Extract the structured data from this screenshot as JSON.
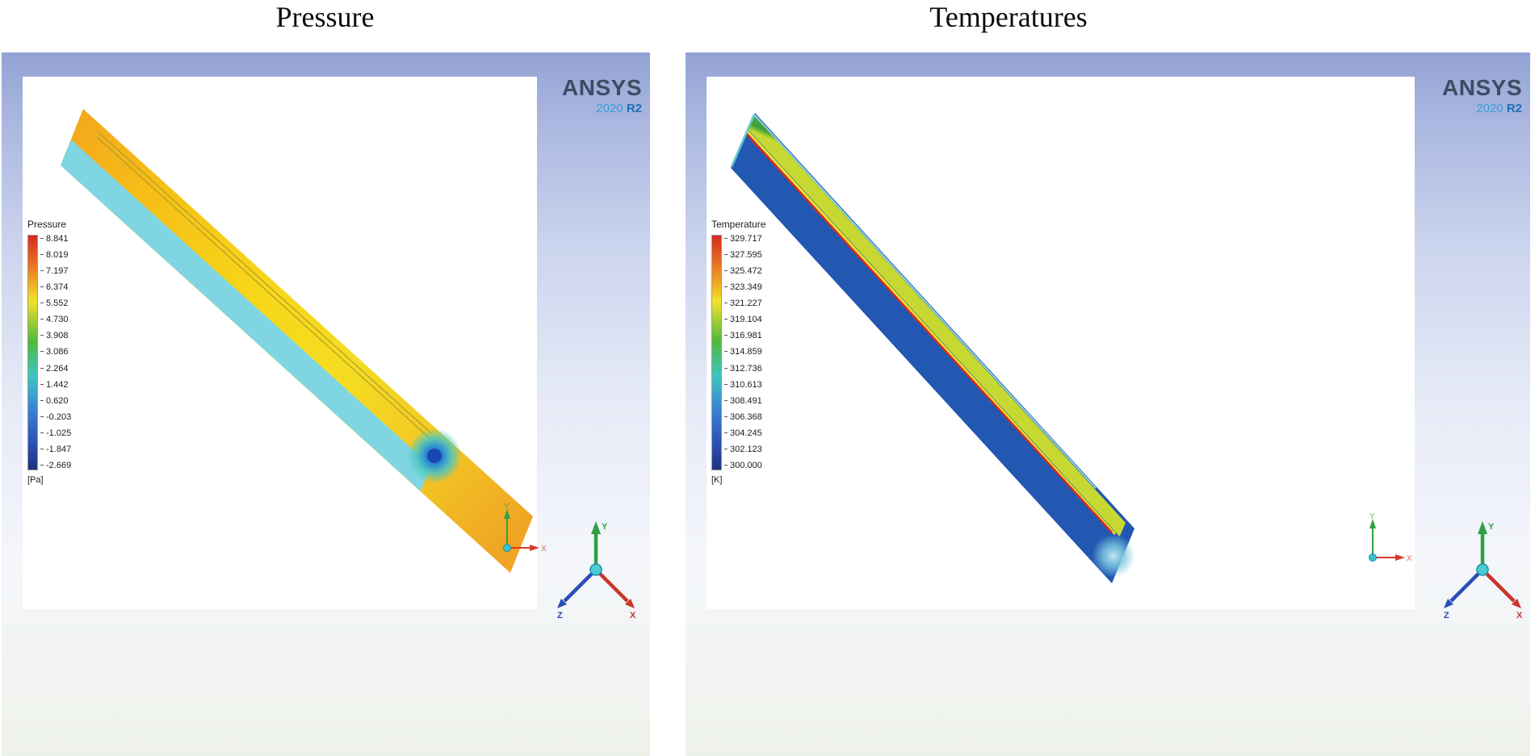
{
  "figure": {
    "panels": [
      {
        "title": "Pressure",
        "logo": {
          "brand": "ANSYS",
          "year": "2020",
          "release": "R2"
        },
        "legend": {
          "title": "Pressure",
          "unit": "[Pa]",
          "ticks": [
            "8.841",
            "8.019",
            "7.197",
            "6.374",
            "5.552",
            "4.730",
            "3.908",
            "3.086",
            "2.264",
            "1.442",
            "0.620",
            "-0.203",
            "-1.025",
            "-1.847",
            "-2.669"
          ]
        },
        "mini_axis": {
          "x": "X",
          "y": "Y"
        },
        "triad": {
          "x": "X",
          "y": "Y",
          "z": "Z"
        }
      },
      {
        "title": "Temperatures",
        "logo": {
          "brand": "ANSYS",
          "year": "2020",
          "release": "R2"
        },
        "legend": {
          "title": "Temperature",
          "unit": "[K]",
          "ticks": [
            "329.717",
            "327.595",
            "325.472",
            "323.349",
            "321.227",
            "319.104",
            "316.981",
            "314.859",
            "312.736",
            "310.613",
            "308.491",
            "306.368",
            "304.245",
            "302.123",
            "300.000"
          ]
        },
        "mini_axis": {
          "x": "X",
          "y": "Y"
        },
        "triad": {
          "x": "X",
          "y": "Y",
          "z": "Z"
        }
      }
    ]
  },
  "chart_data": [
    {
      "type": "heatmap",
      "title": "Pressure",
      "colorbar_title": "Pressure",
      "unit": "[Pa]",
      "levels": [
        8.841,
        8.019,
        7.197,
        6.374,
        5.552,
        4.73,
        3.908,
        3.086,
        2.264,
        1.442,
        0.62,
        -0.203,
        -1.025,
        -1.847,
        -2.669
      ],
      "range": [
        -2.669,
        8.841
      ],
      "colormap": "rainbow (red=high, blue=low)",
      "legend_position": "left",
      "description": "ANSYS 2020 R2 pressure contour on an inclined channel plate: bulk surface orange-to-yellow (~4-7 Pa), cyan band (~1-2 Pa) along the lower edge, and a local low-pressure blue spot (down to ~-2.7 Pa) near the outlet tip at lower right."
    },
    {
      "type": "heatmap",
      "title": "Temperatures",
      "colorbar_title": "Temperature",
      "unit": "[K]",
      "levels": [
        329.717,
        327.595,
        325.472,
        323.349,
        321.227,
        319.104,
        316.981,
        314.859,
        312.736,
        310.613,
        308.491,
        306.368,
        304.245,
        302.123,
        300.0
      ],
      "range": [
        300.0,
        329.717
      ],
      "colormap": "rainbow (red=high, blue=low)",
      "legend_position": "left",
      "description": "ANSYS 2020 R2 temperature contour on the same inclined plate: bulk surface dark blue (~300 K) with a green band (~315-320 K) along the upper edge and thin yellow/red streaks (up to ~330 K) marking the heated channel; light-blue plume near the lower-right tip."
    }
  ]
}
